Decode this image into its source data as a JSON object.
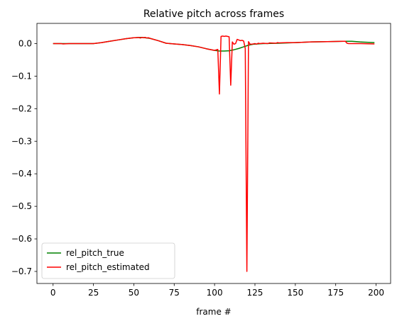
{
  "chart_data": {
    "type": "line",
    "title": "Relative pitch across frames",
    "xlabel": "frame #",
    "ylabel": "",
    "xlim": [
      -10,
      209
    ],
    "ylim": [
      -0.737,
      0.062
    ],
    "xticks": [
      0,
      25,
      50,
      75,
      100,
      125,
      150,
      175,
      200
    ],
    "yticks": [
      0.0,
      -0.1,
      -0.2,
      -0.3,
      -0.4,
      -0.5,
      -0.6,
      -0.7
    ],
    "ytick_labels": [
      "0.0",
      "−0.1",
      "−0.2",
      "−0.3",
      "−0.4",
      "−0.5",
      "−0.6",
      "−0.7"
    ],
    "grid": false,
    "legend": "lower-left",
    "series": [
      {
        "name": "rel_pitch_true",
        "color": "#008000",
        "x": [
          0,
          10,
          20,
          25,
          30,
          35,
          40,
          45,
          50,
          55,
          60,
          65,
          70,
          75,
          80,
          85,
          90,
          95,
          100,
          103,
          106,
          109,
          112,
          115,
          118,
          121,
          124,
          130,
          140,
          150,
          160,
          170,
          180,
          185,
          190,
          199
        ],
        "y": [
          0.0,
          0.0,
          0.0,
          0.0,
          0.003,
          0.007,
          0.011,
          0.015,
          0.018,
          0.019,
          0.016,
          0.009,
          0.001,
          -0.001,
          -0.003,
          -0.006,
          -0.01,
          -0.016,
          -0.021,
          -0.023,
          -0.023,
          -0.022,
          -0.019,
          -0.015,
          -0.01,
          -0.005,
          -0.002,
          0.0,
          0.001,
          0.003,
          0.005,
          0.006,
          0.007,
          0.007,
          0.005,
          0.003
        ]
      },
      {
        "name": "rel_pitch_estimated",
        "color": "#ff0000",
        "x": [
          0,
          5,
          6,
          10,
          20,
          25,
          30,
          35,
          40,
          45,
          50,
          51,
          53,
          54,
          55,
          56,
          57,
          58,
          59,
          60,
          65,
          70,
          75,
          80,
          85,
          90,
          95,
          100,
          102,
          103,
          104,
          105,
          106,
          107,
          108,
          109,
          110,
          111,
          112,
          113,
          114,
          115,
          116,
          117,
          118,
          119,
          120,
          121,
          122,
          123,
          124,
          125,
          126,
          127,
          128,
          130,
          133,
          134,
          138,
          139,
          140,
          145,
          150,
          160,
          170,
          180,
          181,
          182,
          183,
          190,
          199
        ],
        "y": [
          0.0,
          0.0,
          -0.001,
          0.0,
          0.0,
          0.0,
          0.003,
          0.007,
          0.011,
          0.015,
          0.018,
          0.018,
          0.019,
          0.017,
          0.019,
          0.018,
          0.019,
          0.017,
          0.018,
          0.016,
          0.009,
          0.001,
          -0.001,
          -0.003,
          -0.006,
          -0.01,
          -0.016,
          -0.021,
          -0.018,
          -0.155,
          0.022,
          0.023,
          0.022,
          0.023,
          0.022,
          0.021,
          -0.128,
          0.005,
          -0.002,
          0.0,
          0.013,
          0.011,
          0.009,
          0.01,
          0.008,
          -0.015,
          -0.7,
          0.006,
          -0.002,
          -0.002,
          -0.001,
          0.0,
          -0.002,
          0.001,
          0.0,
          0.001,
          0.0,
          0.002,
          0.001,
          0.003,
          0.002,
          0.003,
          0.003,
          0.005,
          0.006,
          0.007,
          0.007,
          0.001,
          0.0,
          0.0,
          -0.001
        ]
      }
    ]
  }
}
